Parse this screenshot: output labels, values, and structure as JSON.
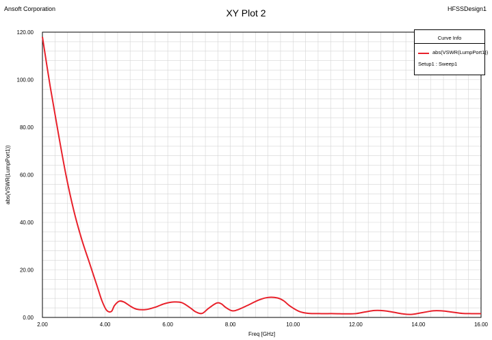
{
  "header": {
    "left": "Ansoft Corporation",
    "right": "HFSSDesign1"
  },
  "legend": {
    "title": "Curve Info",
    "series": "abs(VSWR(LumpPort1))",
    "setup": "Setup1 : Sweep1"
  },
  "colors": {
    "curve": "#e8202a",
    "grid": "#d4d4d4",
    "axis": "#000000"
  },
  "chart_data": {
    "type": "line",
    "title": "XY Plot 2",
    "xlabel": "Freq [GHz]",
    "ylabel": "abs(VSWR(LumpPort1))",
    "xlim": [
      2.0,
      16.0
    ],
    "ylim": [
      0.0,
      120.0
    ],
    "x_ticks": [
      "2.00",
      "4.00",
      "6.00",
      "8.00",
      "10.00",
      "12.00",
      "14.00",
      "16.00"
    ],
    "y_ticks": [
      "0.00",
      "20.00",
      "40.00",
      "60.00",
      "80.00",
      "100.00",
      "120.00"
    ],
    "grid": true,
    "legend_position": "top-right",
    "series": [
      {
        "name": "abs(VSWR(LumpPort1))",
        "x": [
          2.0,
          2.25,
          2.5,
          2.75,
          3.0,
          3.25,
          3.5,
          3.75,
          3.9,
          4.05,
          4.2,
          4.3,
          4.45,
          4.6,
          4.8,
          5.0,
          5.3,
          5.6,
          5.9,
          6.2,
          6.45,
          6.7,
          6.9,
          7.1,
          7.3,
          7.55,
          7.7,
          7.85,
          8.05,
          8.25,
          8.6,
          8.9,
          9.2,
          9.5,
          9.7,
          9.9,
          10.2,
          10.5,
          10.9,
          11.3,
          11.7,
          12.0,
          12.3,
          12.6,
          12.9,
          13.2,
          13.5,
          13.8,
          14.2,
          14.5,
          14.8,
          15.1,
          15.4,
          15.7,
          16.0
        ],
        "y": [
          118,
          97,
          78,
          60,
          45,
          33,
          23,
          13,
          7,
          3,
          2.5,
          5,
          6.8,
          6.5,
          4.8,
          3.5,
          3.3,
          4.3,
          5.8,
          6.5,
          6.2,
          4.2,
          2.3,
          1.7,
          3.8,
          6.0,
          5.8,
          4.2,
          2.8,
          3.3,
          5.4,
          7.3,
          8.4,
          8.2,
          7.0,
          4.8,
          2.5,
          1.7,
          1.6,
          1.6,
          1.5,
          1.6,
          2.3,
          2.9,
          2.8,
          2.2,
          1.5,
          1.3,
          2.2,
          2.8,
          2.7,
          2.2,
          1.7,
          1.6,
          1.6
        ]
      }
    ]
  }
}
